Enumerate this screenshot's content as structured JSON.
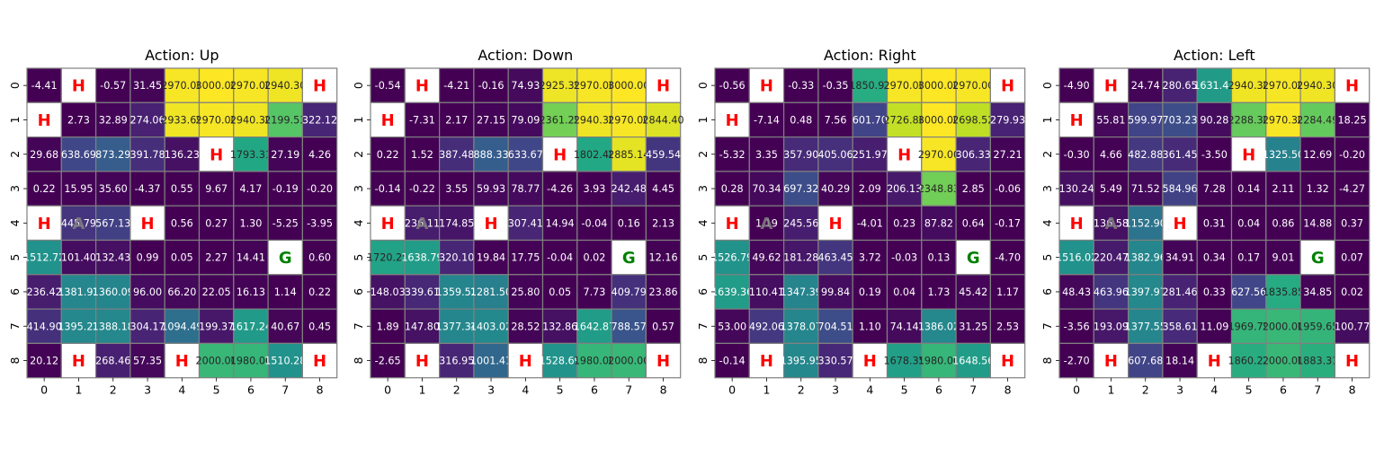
{
  "chart_data": {
    "type": "heatmap",
    "grid_size": [
      9,
      9
    ],
    "xticks": [
      "0",
      "1",
      "2",
      "3",
      "4",
      "5",
      "6",
      "7",
      "8"
    ],
    "yticks": [
      "0",
      "1",
      "2",
      "3",
      "4",
      "5",
      "6",
      "7",
      "8"
    ],
    "colormap": "viridis",
    "color_range": [
      0,
      3000
    ],
    "special_cells": {
      "hole_label": "H",
      "goal_label": "G",
      "agent_label": "A",
      "hole_color": "#ff0000",
      "goal_color": "#008000",
      "agent_color": "#808080",
      "holes": [
        [
          0,
          1
        ],
        [
          0,
          8
        ],
        [
          1,
          0
        ],
        [
          2,
          5
        ],
        [
          4,
          0
        ],
        [
          4,
          3
        ],
        [
          8,
          1
        ],
        [
          8,
          4
        ],
        [
          8,
          8
        ]
      ],
      "goal": [
        5,
        7
      ],
      "agent": [
        4,
        1
      ]
    },
    "panels": [
      {
        "title": "Action: Up",
        "values": [
          [
            "-4.41",
            null,
            "-0.57",
            "31.45",
            "2970.00",
            "3000.00",
            "2970.00",
            "2940.30",
            null
          ],
          [
            null,
            "2.73",
            "32.89",
            "274.06",
            "2933.69",
            "2970.00",
            "2940.30",
            "2199.53",
            "322.12"
          ],
          [
            "29.68",
            "638.69",
            "873.29",
            "391.78",
            "136.23",
            null,
            "1793.31",
            "27.19",
            "4.26"
          ],
          [
            "0.22",
            "15.95",
            "35.60",
            "-4.37",
            "0.55",
            "9.67",
            "4.17",
            "-0.19",
            "-0.20"
          ],
          [
            null,
            "445.79",
            "567.13",
            null,
            "0.56",
            "0.27",
            "1.30",
            "-5.25",
            "-3.95"
          ],
          [
            "1512.72",
            "101.40",
            "132.43",
            "0.99",
            "0.05",
            "2.27",
            "14.41",
            null,
            "0.60"
          ],
          [
            "236.42",
            "1381.93",
            "1360.09",
            "96.00",
            "66.20",
            "22.05",
            "16.13",
            "1.14",
            "0.22"
          ],
          [
            "414.90",
            "1395.23",
            "1388.18",
            "304.17",
            "1094.49",
            "199.37",
            "1617.24",
            "40.67",
            "0.45"
          ],
          [
            "20.12",
            null,
            "268.46",
            "57.35",
            null,
            "2000.00",
            "1980.00",
            "1510.28",
            null
          ]
        ]
      },
      {
        "title": "Action: Down",
        "values": [
          [
            "-0.54",
            null,
            "-4.21",
            "-0.16",
            "74.93",
            "2925.39",
            "2970.00",
            "3000.00",
            null
          ],
          [
            null,
            "-7.31",
            "2.17",
            "27.15",
            "79.09",
            "2361.29",
            "2940.30",
            "2970.00",
            "2844.40"
          ],
          [
            "0.22",
            "1.52",
            "387.48",
            "888.33",
            "633.67",
            null,
            "1802.48",
            "2885.14",
            "459.54"
          ],
          [
            "-0.14",
            "-0.22",
            "3.55",
            "59.93",
            "78.77",
            "-4.26",
            "3.93",
            "242.48",
            "4.45"
          ],
          [
            null,
            "236.11",
            "174.85",
            null,
            "307.41",
            "14.94",
            "-0.04",
            "0.16",
            "2.13"
          ],
          [
            "1720.25",
            "1638.79",
            "320.10",
            "19.84",
            "17.75",
            "-0.04",
            "0.02",
            null,
            "12.16"
          ],
          [
            "148.03",
            "339.61",
            "1359.52",
            "1281.50",
            "25.80",
            "0.05",
            "7.73",
            "409.79",
            "23.86"
          ],
          [
            "1.89",
            "147.80",
            "1377.34",
            "1403.02",
            "28.52",
            "132.86",
            "1642.87",
            "788.57",
            "0.57"
          ],
          [
            "-2.65",
            null,
            "316.95",
            "1001.41",
            null,
            "1528.69",
            "1980.00",
            "2000.00",
            null
          ]
        ]
      },
      {
        "title": "Action: Right",
        "values": [
          [
            "-0.56",
            null,
            "-0.33",
            "-0.35",
            "1850.93",
            "2970.00",
            "3000.00",
            "2970.00",
            null
          ],
          [
            null,
            "-7.14",
            "0.48",
            "7.56",
            "601.70",
            "2726.86",
            "3000.00",
            "2698.52",
            "279.93"
          ],
          [
            "-5.32",
            "3.35",
            "357.90",
            "405.06",
            "251.97",
            null,
            "2970.00",
            "306.33",
            "27.21"
          ],
          [
            "0.28",
            "70.34",
            "697.32",
            "40.29",
            "2.09",
            "206.13",
            "2348.83",
            "2.85",
            "-0.06"
          ],
          [
            null,
            "1.19",
            "245.56",
            null,
            "-4.01",
            "0.23",
            "87.82",
            "0.64",
            "-0.17"
          ],
          [
            "1526.79",
            "49.62",
            "181.28",
            "463.45",
            "3.72",
            "-0.03",
            "0.13",
            null,
            "-4.70"
          ],
          [
            "1639.36",
            "110.41",
            "1347.39",
            "99.84",
            "0.19",
            "0.04",
            "1.73",
            "45.42",
            "1.17"
          ],
          [
            "53.00",
            "492.06",
            "1378.07",
            "704.51",
            "1.10",
            "74.14",
            "1386.02",
            "31.25",
            "2.53"
          ],
          [
            "-0.14",
            null,
            "1395.95",
            "330.57",
            null,
            "1678.35",
            "1980.00",
            "1648.56",
            null
          ]
        ]
      },
      {
        "title": "Action: Left",
        "values": [
          [
            "-4.90",
            null,
            "24.74",
            "280.65",
            "1631.47",
            "2940.30",
            "2970.00",
            "2940.30",
            null
          ],
          [
            null,
            "55.81",
            "599.97",
            "703.23",
            "90.28",
            "2288.30",
            "2970.30",
            "2284.49",
            "18.25"
          ],
          [
            "-0.30",
            "4.66",
            "482.88",
            "361.45",
            "-3.50",
            null,
            "1325.50",
            "12.69",
            "-0.20"
          ],
          [
            "130.24",
            "5.49",
            "71.52",
            "584.96",
            "7.28",
            "0.14",
            "2.11",
            "1.32",
            "-4.27"
          ],
          [
            null,
            "136.58",
            "1152.90",
            null,
            "0.31",
            "0.04",
            "0.86",
            "14.88",
            "0.37"
          ],
          [
            "1516.02",
            "220.47",
            "1382.96",
            "34.91",
            "0.34",
            "0.17",
            "9.01",
            null,
            "0.07"
          ],
          [
            "48.43",
            "463.96",
            "1397.97",
            "281.46",
            "0.33",
            "627.56",
            "1835.85",
            "34.85",
            "0.02"
          ],
          [
            "-3.56",
            "193.09",
            "1377.55",
            "358.61",
            "11.09",
            "1969.79",
            "2000.00",
            "1959.65",
            "100.77"
          ],
          [
            "-2.70",
            null,
            "607.68",
            "18.14",
            null,
            "1860.22",
            "2000.00",
            "1883.31",
            null
          ]
        ]
      }
    ]
  }
}
